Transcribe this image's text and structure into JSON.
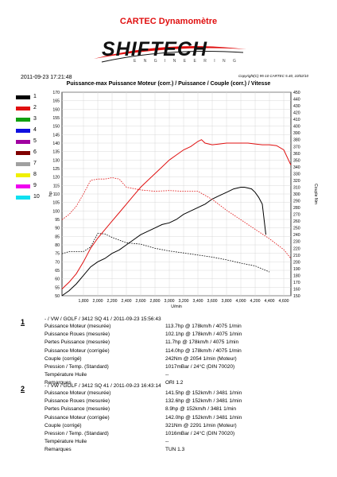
{
  "header": {
    "title": "CARTEC Dynamomètre",
    "logo_text": "SHIFTECH",
    "logo_sub": "E N G I N E E R I N G",
    "datetime": "2011-09-23 17:21:48",
    "copyright": "Copyright(C) 95-10 CARTEC 5.40, 10/02/10"
  },
  "legend": [
    {
      "num": "1",
      "color": "#000000"
    },
    {
      "num": "2",
      "color": "#e01010"
    },
    {
      "num": "3",
      "color": "#10a010"
    },
    {
      "num": "4",
      "color": "#1010e0"
    },
    {
      "num": "5",
      "color": "#a000a0"
    },
    {
      "num": "6",
      "color": "#800000"
    },
    {
      "num": "7",
      "color": "#a0a0a0"
    },
    {
      "num": "8",
      "color": "#f0f000"
    },
    {
      "num": "9",
      "color": "#f000f0"
    },
    {
      "num": "10",
      "color": "#10e0f0"
    }
  ],
  "chart_data": {
    "type": "line",
    "title": "Puissance-max Puissance Moteur (corr.) / Puissance / Couple (corr.) / Vitesse",
    "xlabel": "U/min",
    "ylabel_left": "hp",
    "ylabel_right": "Couple Nm",
    "xlim": [
      1500,
      4700
    ],
    "ylim_left": [
      50,
      170
    ],
    "ylim_right": [
      150,
      450
    ],
    "x_ticks": [
      "1,800",
      "2,000",
      "2,200",
      "2,400",
      "2,600",
      "2,800",
      "3,000",
      "3,200",
      "3,400",
      "3,600",
      "3,800",
      "4,000",
      "4,200",
      "4,400",
      "4,600"
    ],
    "y_left_ticks": [
      "50",
      "55",
      "60",
      "65",
      "70",
      "75",
      "80",
      "85",
      "90",
      "95",
      "100",
      "105",
      "110",
      "115",
      "120",
      "125",
      "130",
      "135",
      "140",
      "145",
      "150",
      "155",
      "160",
      "165",
      "170"
    ],
    "y_right_ticks": [
      "150",
      "160",
      "170",
      "180",
      "190",
      "200",
      "210",
      "220",
      "230",
      "240",
      "250",
      "260",
      "270",
      "280",
      "290",
      "300",
      "310",
      "320",
      "330",
      "340",
      "350",
      "360",
      "370",
      "380",
      "390",
      "400",
      "410",
      "420",
      "430",
      "440",
      "450"
    ],
    "series": [
      {
        "color": "#000000",
        "style": "solid",
        "axis": "left",
        "x": [
          1500,
          1600,
          1700,
          1800,
          1900,
          2000,
          2100,
          2200,
          2300,
          2400,
          2500,
          2600,
          2700,
          2800,
          2900,
          3000,
          3100,
          3200,
          3300,
          3400,
          3500,
          3600,
          3700,
          3800,
          3900,
          4000,
          4050,
          4100,
          4150,
          4200,
          4250,
          4300,
          4350
        ],
        "y": [
          50,
          53,
          57,
          62,
          67,
          70,
          72,
          75,
          77,
          80,
          83,
          86,
          88,
          90,
          92,
          93,
          95,
          98,
          100,
          102,
          104,
          107,
          109,
          111,
          113,
          114,
          114,
          113.5,
          113,
          111,
          108,
          104,
          86
        ]
      },
      {
        "color": "#000000",
        "style": "dashed",
        "axis": "right",
        "x": [
          1500,
          1600,
          1700,
          1800,
          1900,
          2000,
          2100,
          2200,
          2400,
          2600,
          2800,
          3000,
          3200,
          3400,
          3600,
          3800,
          4000,
          4200,
          4400
        ],
        "y": [
          212,
          215,
          215,
          215,
          222,
          242,
          241,
          236,
          228,
          226,
          220,
          216,
          213,
          210,
          207,
          203,
          198,
          194,
          185
        ]
      },
      {
        "color": "#e01010",
        "style": "solid",
        "axis": "left",
        "x": [
          1500,
          1600,
          1700,
          1800,
          1900,
          2000,
          2100,
          2200,
          2300,
          2400,
          2500,
          2600,
          2700,
          2800,
          2900,
          3000,
          3100,
          3200,
          3300,
          3400,
          3450,
          3500,
          3600,
          3700,
          3800,
          3900,
          4000,
          4100,
          4200,
          4300,
          4400,
          4500,
          4600,
          4700
        ],
        "y": [
          54,
          58,
          63,
          70,
          78,
          84,
          89,
          94,
          99,
          104,
          109,
          114,
          118,
          122,
          126,
          130,
          133,
          136,
          138,
          141,
          142,
          140,
          139,
          139.5,
          140,
          140,
          140,
          140,
          139.5,
          139,
          139,
          138.5,
          136,
          127
        ]
      },
      {
        "color": "#e01010",
        "style": "dashed",
        "axis": "right",
        "x": [
          1500,
          1600,
          1700,
          1800,
          1900,
          2000,
          2100,
          2200,
          2300,
          2400,
          2600,
          2800,
          3000,
          3200,
          3400,
          3600,
          3800,
          4000,
          4200,
          4400,
          4600,
          4700
        ],
        "y": [
          262,
          270,
          282,
          300,
          320,
          322,
          322,
          324,
          322,
          310,
          306,
          304,
          305,
          304,
          304,
          292,
          276,
          262,
          248,
          234,
          218,
          205
        ]
      }
    ]
  },
  "runs": [
    {
      "no": "1",
      "title": "- / VW / GOLF / 3412 SQ 41 / 2011-09-23 15:56:43",
      "rows": [
        {
          "label": "Puissance Moteur (mesurée)",
          "value": "113.7hp @ 178km/h / 4075 1/min"
        },
        {
          "label": "Puissance Roues (mesurée)",
          "value": "102.1hp @ 178km/h / 4075 1/min"
        },
        {
          "label": "Pertes Puissance (mesurée)",
          "value": "11.7hp @ 178km/h / 4075 1/min"
        },
        {
          "label": "Puissance Moteur (corrigée)",
          "value": "114.0hp @ 178km/h / 4075 1/min"
        },
        {
          "label": "Couple (corrigé)",
          "value": "242Nm @ 2054 1/min (Moteur)"
        },
        {
          "label": "Pression / Temp. (Standard)",
          "value": "1017mBar / 24°C   (DIN 70020)"
        },
        {
          "label": "Température Huile",
          "value": "--"
        },
        {
          "label": "Remarques",
          "value": "ORI 1.2"
        }
      ]
    },
    {
      "no": "2",
      "title": "- / VW / GOLF / 3412 SQ 41 / 2011-09-23 16:43:14",
      "rows": [
        {
          "label": "Puissance Moteur (mesurée)",
          "value": "141.5hp @ 152km/h / 3481 1/min"
        },
        {
          "label": "Puissance Roues (mesurée)",
          "value": "132.6hp @ 152km/h / 3481 1/min"
        },
        {
          "label": "Pertes Puissance (mesurée)",
          "value": "8.9hp @ 152km/h / 3481 1/min"
        },
        {
          "label": "Puissance Moteur (corrigée)",
          "value": "142.0hp @ 152km/h / 3481 1/min"
        },
        {
          "label": "Couple (corrigé)",
          "value": "321Nm @ 2291 1/min (Moteur)"
        },
        {
          "label": "Pression / Temp. (Standard)",
          "value": "1016mBar / 24°C   (DIN 70020)"
        },
        {
          "label": "Température Huile",
          "value": "--"
        },
        {
          "label": "Remarques",
          "value": "TUN 1.3"
        }
      ]
    }
  ]
}
